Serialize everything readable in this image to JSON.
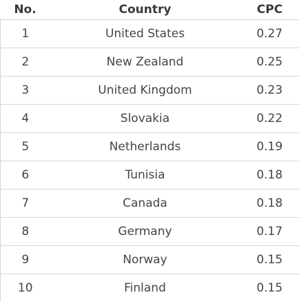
{
  "table": {
    "headers": {
      "no": "No.",
      "country": "Country",
      "cpc": "CPC"
    },
    "rows": [
      {
        "no": "1",
        "country": "United States",
        "cpc": "0.27"
      },
      {
        "no": "2",
        "country": "New Zealand",
        "cpc": "0.25"
      },
      {
        "no": "3",
        "country": "United Kingdom",
        "cpc": "0.23"
      },
      {
        "no": "4",
        "country": "Slovakia",
        "cpc": "0.22"
      },
      {
        "no": "5",
        "country": "Netherlands",
        "cpc": "0.19"
      },
      {
        "no": "6",
        "country": "Tunisia",
        "cpc": "0.18"
      },
      {
        "no": "7",
        "country": "Canada",
        "cpc": "0.18"
      },
      {
        "no": "8",
        "country": "Germany",
        "cpc": "0.17"
      },
      {
        "no": "9",
        "country": "Norway",
        "cpc": "0.15"
      },
      {
        "no": "10",
        "country": "Finland",
        "cpc": "0.15"
      }
    ]
  }
}
